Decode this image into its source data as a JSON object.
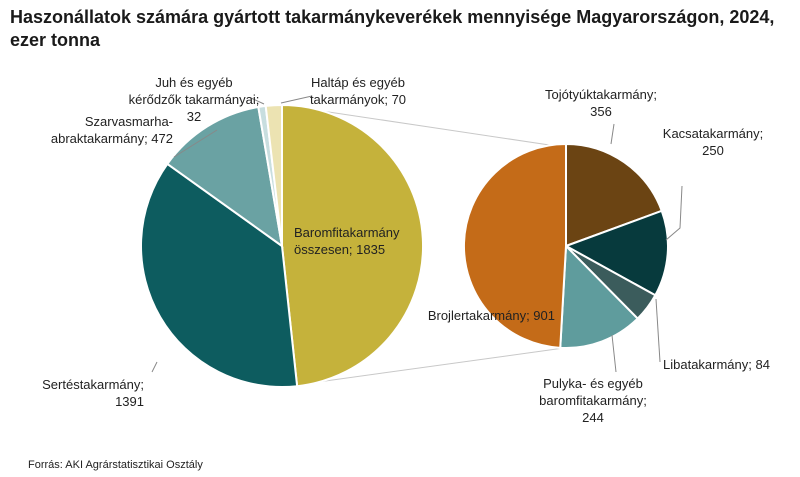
{
  "title": "Haszonállatok számára gyártott takarmánykeverékek mennyisége Magyarországon, 2024, ezer tonna",
  "source": "Forrás: AKI Agrárstatisztikai Osztály",
  "chart_data": [
    {
      "type": "pie",
      "name": "main",
      "slices": [
        {
          "label": "Baromfitakarmány összesen",
          "value": 1835,
          "color": "#c5b23b"
        },
        {
          "label": "Sertéstakarmány",
          "value": 1391,
          "color": "#0d5c5f"
        },
        {
          "label": "Szarvasmarha-abraktakarmány",
          "value": 472,
          "color": "#6aa2a3"
        },
        {
          "label": "Juh és egyéb kérődzők takarmányai",
          "value": 32,
          "color": "#c8dedf"
        },
        {
          "label": "Haltáp és egyéb takarmányok",
          "value": 70,
          "color": "#ece3b2"
        }
      ],
      "labels": {
        "baromfi": [
          "Baromfitakarmány",
          "összesen; 1835"
        ],
        "serte": [
          "Sertéstakarmány;",
          "1391"
        ],
        "szarvas": [
          "Szarvasmarha-",
          "abraktakarmány; 472"
        ],
        "juh": [
          "Juh és egyéb",
          "kérődzők takarmányai;",
          "32"
        ],
        "hal": [
          "Haltáp és egyéb",
          "takarmányok; 70"
        ]
      }
    },
    {
      "type": "pie",
      "name": "breakdown",
      "slices": [
        {
          "label": "Tojótyúktakarmány",
          "value": 356,
          "color": "#6b4413"
        },
        {
          "label": "Kacsatakarmány",
          "value": 250,
          "color": "#073a3d"
        },
        {
          "label": "Libatakarmány",
          "value": 84,
          "color": "#3b5c5c"
        },
        {
          "label": "Pulyka- és egyéb baromfitakarmány",
          "value": 244,
          "color": "#5f9c9d"
        },
        {
          "label": "Brojlertakarmány",
          "value": 901,
          "color": "#c46b18"
        }
      ],
      "labels": {
        "tojo": [
          "Tojótyúktakarmány;",
          "356"
        ],
        "kacsa": [
          "Kacsatakarmány;",
          "250"
        ],
        "liba": [
          "Libatakarmány; 84"
        ],
        "pulyka": [
          "Pulyka- és egyéb",
          "baromfitakarmány;",
          "244"
        ],
        "brojler": [
          "Brojlertakarmány; 901"
        ]
      }
    }
  ]
}
